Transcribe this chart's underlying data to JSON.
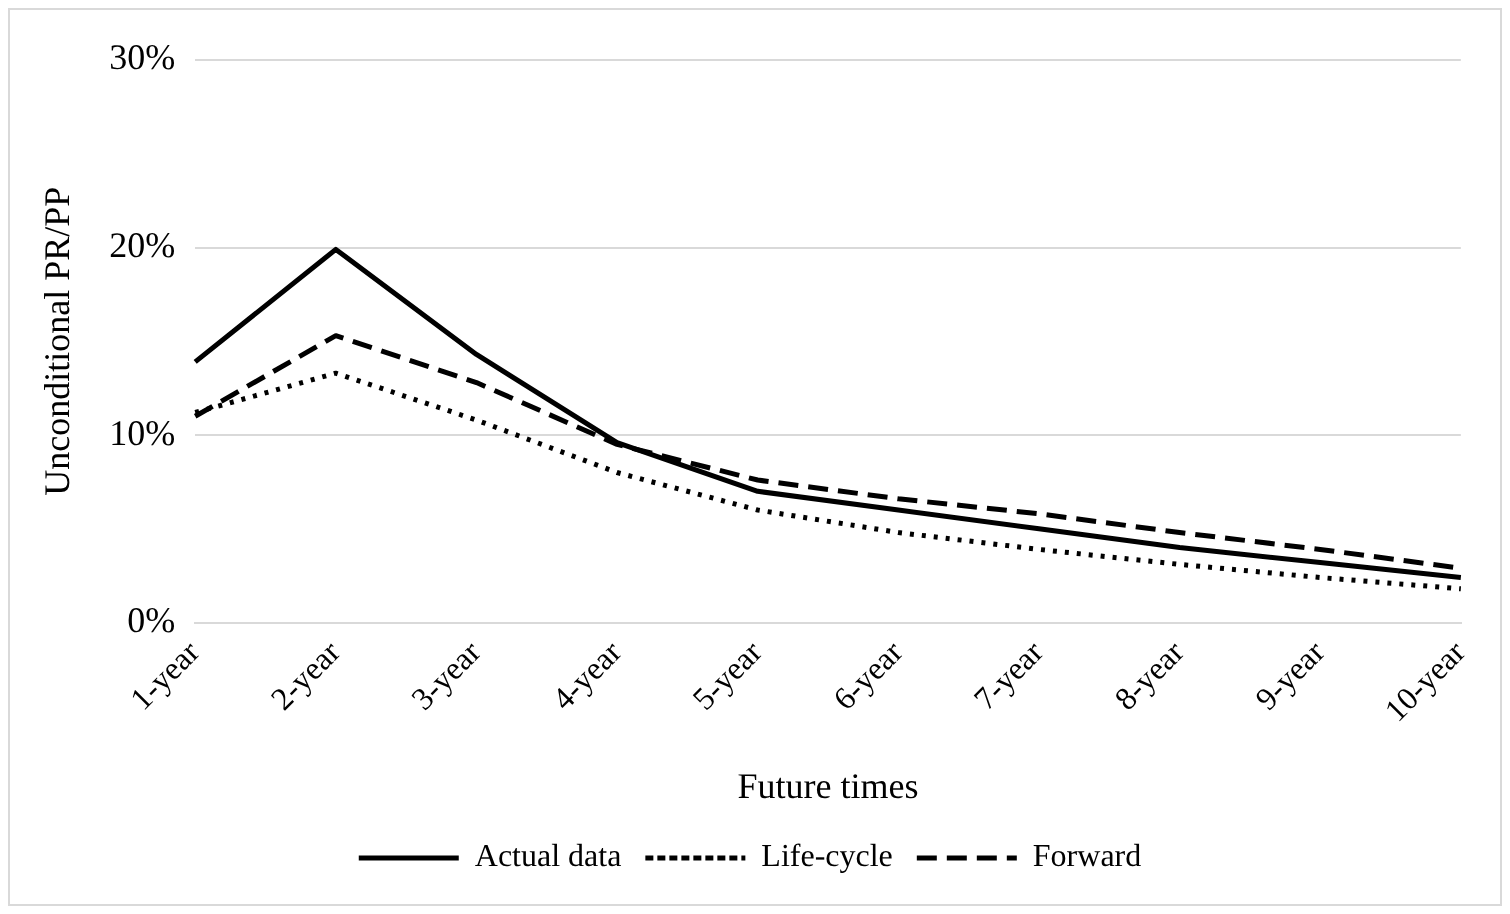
{
  "chart_data": {
    "type": "line",
    "xlabel": "Future times",
    "ylabel": "Unconditional PR/PP",
    "categories": [
      "1-year",
      "2-year",
      "3-year",
      "4-year",
      "5-year",
      "6-year",
      "7-year",
      "8-year",
      "9-year",
      "10-year"
    ],
    "series": [
      {
        "name": "Actual data",
        "color": "#000000",
        "line_style": "solid",
        "values": [
          13.9,
          19.9,
          14.3,
          9.6,
          7.0,
          6.0,
          5.0,
          4.0,
          3.2,
          2.4
        ]
      },
      {
        "name": "Life-cycle",
        "color": "#000000",
        "line_style": "dotted",
        "values": [
          11.2,
          13.3,
          10.8,
          8.0,
          6.0,
          4.8,
          3.9,
          3.1,
          2.4,
          1.8
        ]
      },
      {
        "name": "Forward",
        "color": "#000000",
        "line_style": "dashed",
        "values": [
          11.0,
          15.3,
          12.8,
          9.5,
          7.6,
          6.6,
          5.8,
          4.8,
          3.9,
          2.9
        ]
      }
    ],
    "ylim": [
      0,
      30
    ],
    "yticks": [
      {
        "value": 0,
        "label": "0%"
      },
      {
        "value": 10,
        "label": "10%"
      },
      {
        "value": 20,
        "label": "20%"
      },
      {
        "value": 30,
        "label": "30%"
      }
    ],
    "grid": "y",
    "legend": "bottom",
    "marker": "none"
  }
}
